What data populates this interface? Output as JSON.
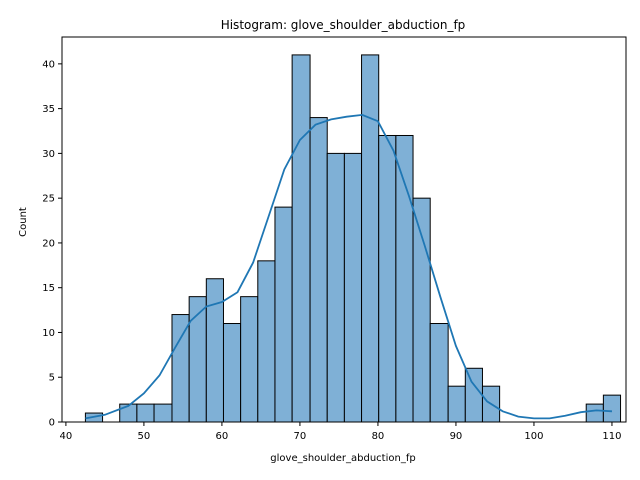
{
  "chart_data": {
    "type": "bar",
    "title": "Histogram: glove_shoulder_abduction_fp",
    "xlabel": "glove_shoulder_abduction_fp",
    "ylabel": "Count",
    "xlim": [
      39.5,
      111.8
    ],
    "ylim": [
      0,
      43
    ],
    "x_ticks": [
      40,
      50,
      60,
      70,
      80,
      90,
      100,
      110
    ],
    "y_ticks": [
      0,
      5,
      10,
      15,
      20,
      25,
      30,
      35,
      40
    ],
    "grid": false,
    "bar_color": "#7fb0d6",
    "bar_edge_color": "#000000",
    "kde_color": "#1f77b4",
    "bins": [
      {
        "x0": 42.5,
        "x1": 44.7,
        "count": 1
      },
      {
        "x0": 44.7,
        "x1": 46.9,
        "count": 0
      },
      {
        "x0": 46.9,
        "x1": 49.1,
        "count": 2
      },
      {
        "x0": 49.1,
        "x1": 51.3,
        "count": 2
      },
      {
        "x0": 51.3,
        "x1": 53.6,
        "count": 2
      },
      {
        "x0": 53.6,
        "x1": 55.8,
        "count": 12
      },
      {
        "x0": 55.8,
        "x1": 58.0,
        "count": 14
      },
      {
        "x0": 58.0,
        "x1": 60.2,
        "count": 16
      },
      {
        "x0": 60.2,
        "x1": 62.4,
        "count": 11
      },
      {
        "x0": 62.4,
        "x1": 64.6,
        "count": 14
      },
      {
        "x0": 64.6,
        "x1": 66.8,
        "count": 18
      },
      {
        "x0": 66.8,
        "x1": 69.0,
        "count": 24
      },
      {
        "x0": 69.0,
        "x1": 71.3,
        "count": 41
      },
      {
        "x0": 71.3,
        "x1": 73.5,
        "count": 34
      },
      {
        "x0": 73.5,
        "x1": 75.7,
        "count": 30
      },
      {
        "x0": 75.7,
        "x1": 77.9,
        "count": 30
      },
      {
        "x0": 77.9,
        "x1": 80.1,
        "count": 41
      },
      {
        "x0": 80.1,
        "x1": 82.3,
        "count": 32
      },
      {
        "x0": 82.3,
        "x1": 84.5,
        "count": 32
      },
      {
        "x0": 84.5,
        "x1": 86.7,
        "count": 25
      },
      {
        "x0": 86.7,
        "x1": 89.0,
        "count": 11
      },
      {
        "x0": 89.0,
        "x1": 91.2,
        "count": 4
      },
      {
        "x0": 91.2,
        "x1": 93.4,
        "count": 6
      },
      {
        "x0": 93.4,
        "x1": 95.6,
        "count": 4
      },
      {
        "x0": 95.6,
        "x1": 97.8,
        "count": 0
      },
      {
        "x0": 97.8,
        "x1": 100.0,
        "count": 0
      },
      {
        "x0": 100.0,
        "x1": 102.2,
        "count": 0
      },
      {
        "x0": 102.2,
        "x1": 104.4,
        "count": 0
      },
      {
        "x0": 104.4,
        "x1": 106.7,
        "count": 0
      },
      {
        "x0": 106.7,
        "x1": 108.9,
        "count": 2
      },
      {
        "x0": 108.9,
        "x1": 111.1,
        "count": 3
      }
    ],
    "kde": {
      "x": [
        42.5,
        45,
        48,
        50,
        52,
        54,
        56,
        58,
        60,
        62,
        64,
        66,
        68,
        70,
        72,
        74,
        76,
        78,
        80,
        82,
        84,
        86,
        88,
        90,
        92,
        94,
        96,
        98,
        100,
        102,
        104,
        106,
        108,
        110
      ],
      "y": [
        0.4,
        0.8,
        1.8,
        3.2,
        5.2,
        8.3,
        11.3,
        12.9,
        13.4,
        14.5,
        17.8,
        23.0,
        28.2,
        31.5,
        33.2,
        33.8,
        34.1,
        34.3,
        33.6,
        30.3,
        25.2,
        19.7,
        14.0,
        8.5,
        4.5,
        2.3,
        1.2,
        0.6,
        0.4,
        0.4,
        0.7,
        1.1,
        1.3,
        1.2
      ]
    }
  }
}
